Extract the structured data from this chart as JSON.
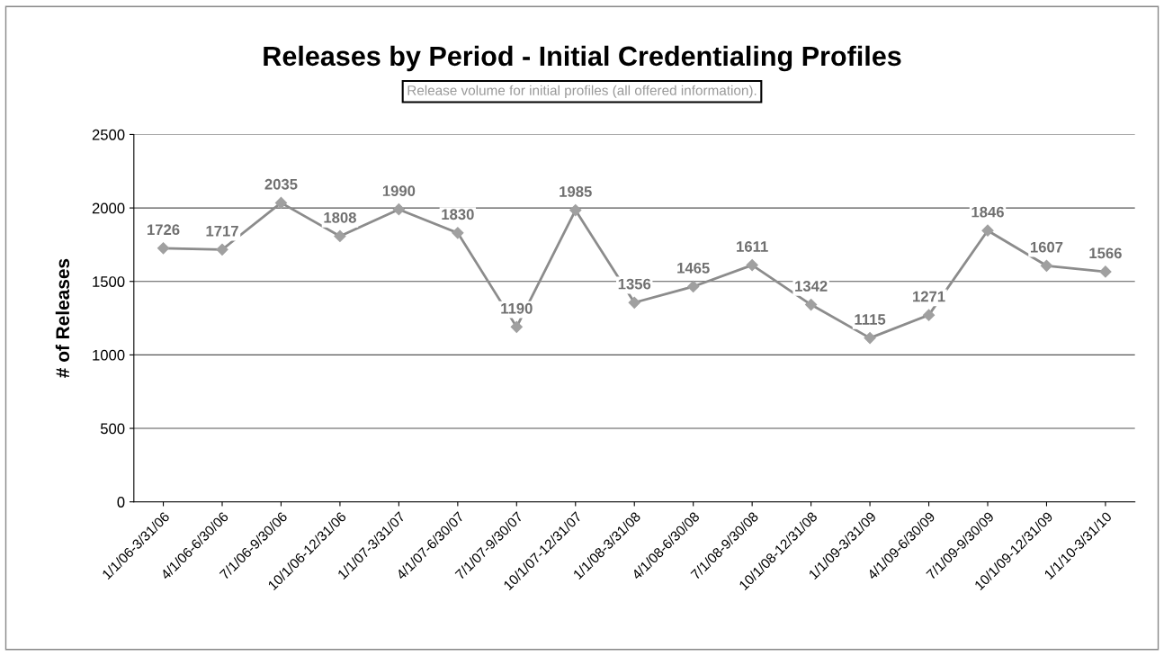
{
  "chart_data": {
    "type": "line",
    "title": "Releases by Period - Initial Credentialing Profiles",
    "subtitle": "Release volume for initial profiles (all offered information).",
    "ylabel": "# of Releases",
    "categories": [
      "1/1/06-3/31/06",
      "4/1/06-6/30/06",
      "7/1/06-9/30/06",
      "10/1/06-12/31/06",
      "1/1/07-3/31/07",
      "4/1/07-6/30/07",
      "7/1/07-9/30/07",
      "10/1/07-12/31/07",
      "1/1/08-3/31/08",
      "4/1/08-6/30/08",
      "7/1/08-9/30/08",
      "10/1/08-12/31/08",
      "1/1/09-3/31/09",
      "4/1/09-6/30/09",
      "7/1/09-9/30/09",
      "10/1/09-12/31/09",
      "1/1/10-3/31/10"
    ],
    "series": [
      {
        "color": "#8c8c8c",
        "values": [
          1726,
          1717,
          2035,
          1808,
          1990,
          1830,
          1190,
          1985,
          1356,
          1465,
          1611,
          1342,
          1115,
          1271,
          1846,
          1607,
          1566
        ]
      }
    ],
    "ylim": [
      0,
      2500
    ],
    "yticks": [
      0,
      500,
      1000,
      1500,
      2000,
      2500
    ],
    "grid": "y",
    "marker": "diamond",
    "line_style": "solid",
    "data_labels": true
  }
}
